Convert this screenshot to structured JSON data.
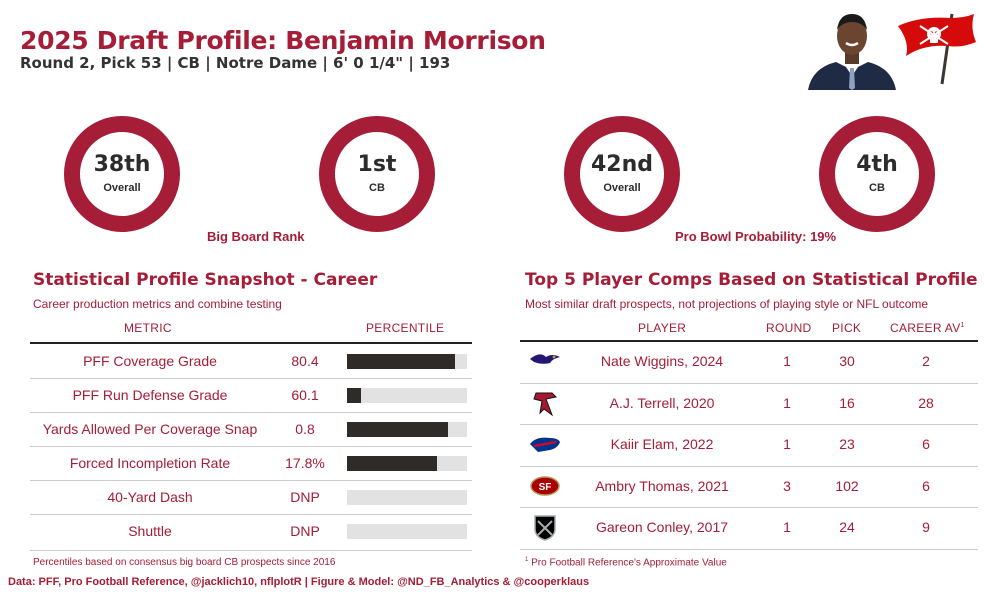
{
  "header": {
    "title": "2025 Draft Profile: Benjamin Morrison",
    "subtitle": "Round 2, Pick 53 | CB | Notre Dame | 6' 0 1/4\" | 193"
  },
  "big_board": {
    "caption": "Big Board Rank",
    "overall": {
      "value": "38th",
      "label": "Overall"
    },
    "position": {
      "value": "1st",
      "label": "CB"
    }
  },
  "pro_bowl": {
    "caption": "Pro Bowl Probability: 19%",
    "overall": {
      "value": "42nd",
      "label": "Overall"
    },
    "position": {
      "value": "4th",
      "label": "CB"
    }
  },
  "stat_profile": {
    "title": "Statistical Profile Snapshot - Career",
    "subtitle": "Career production metrics and combine testing",
    "col_metric": "METRIC",
    "col_percentile": "PERCENTILE",
    "rows": [
      {
        "metric": "PFF Coverage Grade",
        "value": "80.4",
        "percentile": 0.9
      },
      {
        "metric": "PFF Run Defense Grade",
        "value": "60.1",
        "percentile": 0.12
      },
      {
        "metric": "Yards Allowed Per Coverage Snap",
        "value": "0.8",
        "percentile": 0.84
      },
      {
        "metric": "Forced Incompletion Rate",
        "value": "17.8%",
        "percentile": 0.75
      },
      {
        "metric": "40-Yard Dash",
        "value": "DNP",
        "percentile": 0
      },
      {
        "metric": "Shuttle",
        "value": "DNP",
        "percentile": 0
      }
    ],
    "footnote": "Percentiles based on consensus big board CB prospects since 2016"
  },
  "comps": {
    "title": "Top 5 Player Comps Based on Statistical Profile",
    "subtitle": "Most similar draft prospects, not projections of playing style or NFL outcome",
    "col_player": "PLAYER",
    "col_round": "ROUND",
    "col_pick": "PICK",
    "col_av": "CAREER AV",
    "col_av_sup": "1",
    "rows": [
      {
        "team_icon": "ravens-logo-icon",
        "color": "#241773",
        "player": "Nate Wiggins, 2024",
        "round": "1",
        "pick": "30",
        "av": "2"
      },
      {
        "team_icon": "falcons-logo-icon",
        "color": "#a71930",
        "player": "A.J. Terrell, 2020",
        "round": "1",
        "pick": "16",
        "av": "28"
      },
      {
        "team_icon": "bills-logo-icon",
        "color": "#00338d",
        "player": "Kaiir Elam, 2022",
        "round": "1",
        "pick": "23",
        "av": "6"
      },
      {
        "team_icon": "49ers-logo-icon",
        "color": "#aa0000",
        "player": "Ambry Thomas, 2021",
        "round": "3",
        "pick": "102",
        "av": "6"
      },
      {
        "team_icon": "raiders-logo-icon",
        "color": "#000000",
        "player": "Gareon Conley, 2017",
        "round": "1",
        "pick": "24",
        "av": "9"
      }
    ],
    "footnote_sup": "1",
    "footnote": "Pro Football Reference's Approximate Value"
  },
  "credits": "Data: PFF, Pro Football Reference, @jacklich10, nflplotR | Figure & Model: @ND_FB_Analytics & @cooperklaus",
  "colors": {
    "accent": "#a51d36",
    "bar": "#2e2b28",
    "track": "#e2e2e2"
  },
  "icons": {
    "headshot": "player-headshot",
    "team": "buccaneers-flag-logo-icon"
  }
}
